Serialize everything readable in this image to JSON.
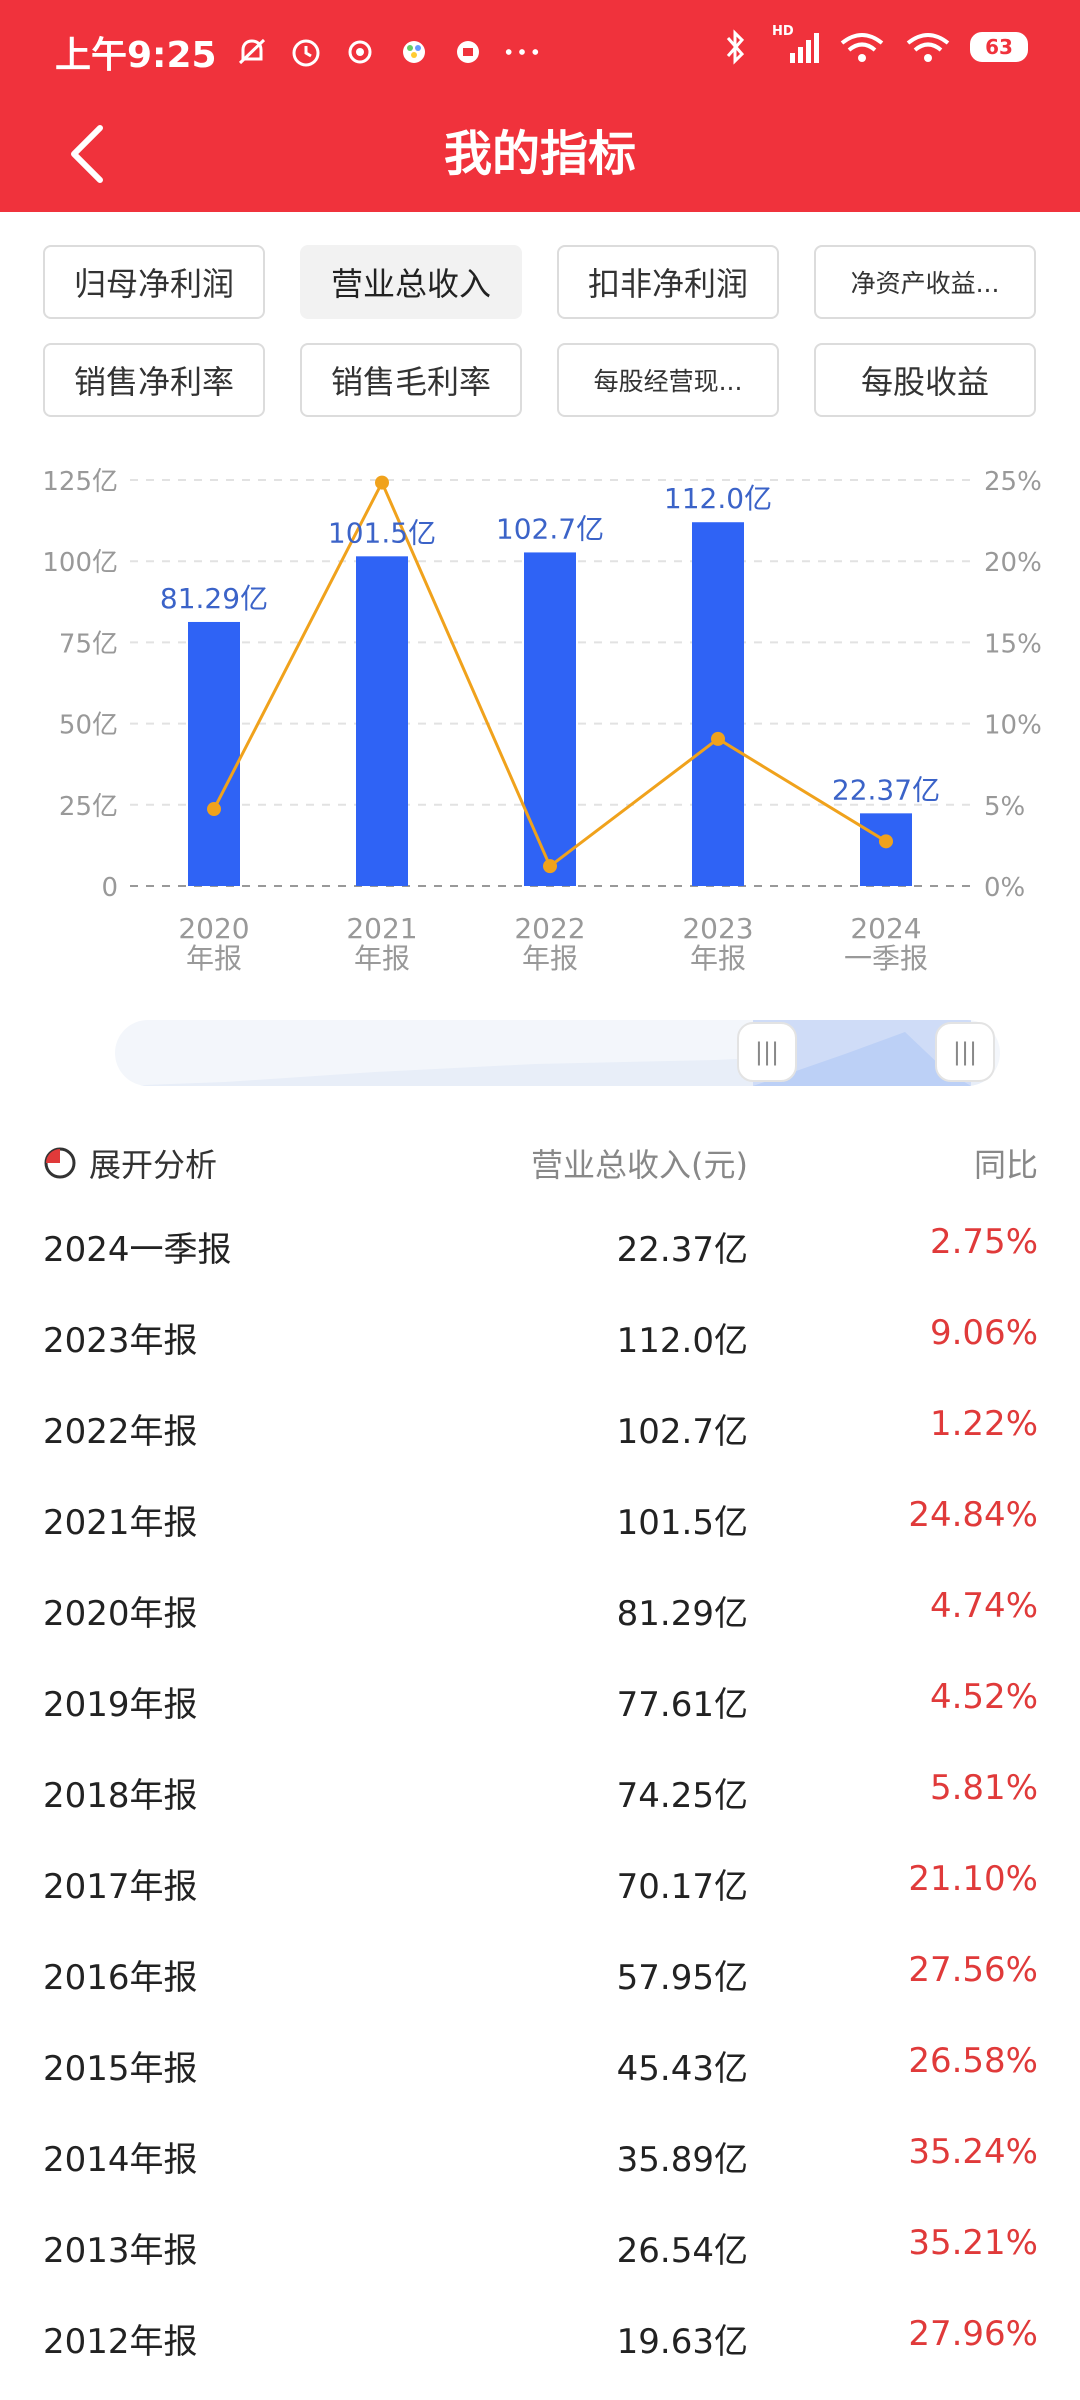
{
  "status_bar": {
    "time": "上午9:25",
    "network": "HD",
    "battery": "63"
  },
  "header": {
    "title": "我的指标"
  },
  "tabs": [
    {
      "label": "归母净利润",
      "active": false
    },
    {
      "label": "营业总收入",
      "active": true
    },
    {
      "label": "扣非净利润",
      "active": false
    },
    {
      "label": "净资产收益...",
      "active": false
    },
    {
      "label": "销售净利率",
      "active": false
    },
    {
      "label": "销售毛利率",
      "active": false
    },
    {
      "label": "每股经营现...",
      "active": false
    },
    {
      "label": "每股收益",
      "active": false
    }
  ],
  "chart_data": {
    "type": "bar",
    "categories": [
      "2020\n年报",
      "2021\n年报",
      "2022\n年报",
      "2023\n年报",
      "2024\n一季报"
    ],
    "series": [
      {
        "values": [
          81.29,
          101.5,
          102.7,
          112.0,
          22.37
        ],
        "labels": [
          "81.29亿",
          "101.5亿",
          "102.7亿",
          "112.0亿",
          "22.37亿"
        ],
        "color": "#2f63f5",
        "axis": "left"
      },
      {
        "type": "line",
        "values": [
          4.74,
          24.84,
          1.22,
          9.06,
          2.75
        ],
        "color": "#f0a21c",
        "axis": "right"
      }
    ],
    "y_left_ticks": [
      "0",
      "25亿",
      "50亿",
      "75亿",
      "100亿",
      "125亿"
    ],
    "y_right_ticks": [
      "0%",
      "5%",
      "10%",
      "15%",
      "20%",
      "25%"
    ],
    "ylim_left": [
      0,
      125
    ],
    "ylim_right": [
      0,
      25
    ],
    "grid": true
  },
  "table": {
    "analysis_label": "展开分析",
    "value_header": "营业总收入(元)",
    "yoy_header": "同比",
    "rows": [
      {
        "period": "2024一季报",
        "value": "22.37亿",
        "yoy": "2.75%"
      },
      {
        "period": "2023年报",
        "value": "112.0亿",
        "yoy": "9.06%"
      },
      {
        "period": "2022年报",
        "value": "102.7亿",
        "yoy": "1.22%"
      },
      {
        "period": "2021年报",
        "value": "101.5亿",
        "yoy": "24.84%"
      },
      {
        "period": "2020年报",
        "value": "81.29亿",
        "yoy": "4.74%"
      },
      {
        "period": "2019年报",
        "value": "77.61亿",
        "yoy": "4.52%"
      },
      {
        "period": "2018年报",
        "value": "74.25亿",
        "yoy": "5.81%"
      },
      {
        "period": "2017年报",
        "value": "70.17亿",
        "yoy": "21.10%"
      },
      {
        "period": "2016年报",
        "value": "57.95亿",
        "yoy": "27.56%"
      },
      {
        "period": "2015年报",
        "value": "45.43亿",
        "yoy": "26.58%"
      },
      {
        "period": "2014年报",
        "value": "35.89亿",
        "yoy": "35.24%"
      },
      {
        "period": "2013年报",
        "value": "26.54亿",
        "yoy": "35.21%"
      },
      {
        "period": "2012年报",
        "value": "19.63亿",
        "yoy": "27.96%"
      }
    ]
  },
  "colors": {
    "header_bg": "#f0323c",
    "bar": "#2f63f5",
    "line": "#f0a21c",
    "positive": "#e03a3a"
  }
}
